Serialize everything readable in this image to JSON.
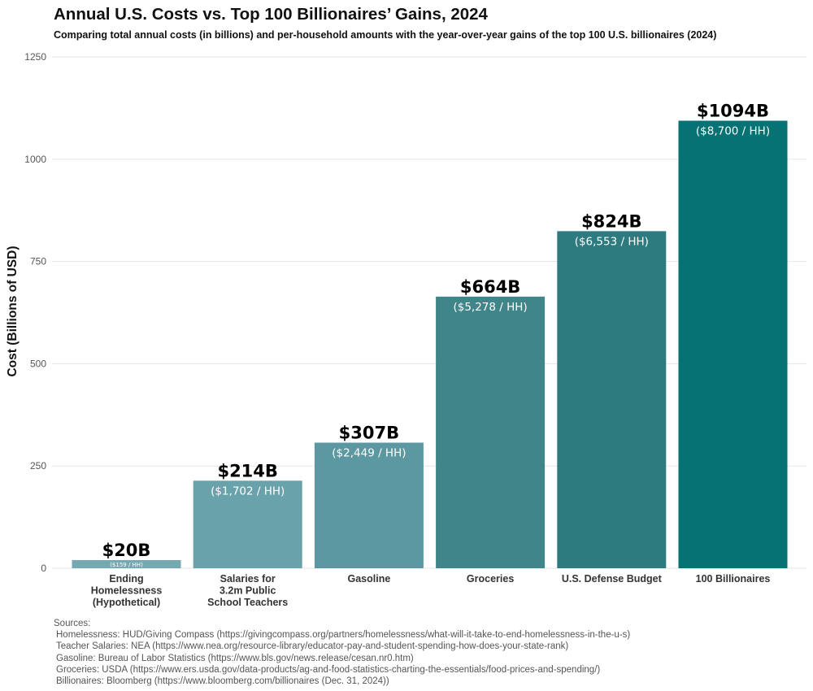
{
  "chart_data": {
    "type": "bar",
    "title": "Annual U.S. Costs vs. Top 100 Billionaires’ Gains, 2024",
    "subtitle": "Comparing total annual costs (in billions) and per-household amounts with the year-over-year gains of the top 100 U.S. billionaires (2024)",
    "xlabel": "",
    "ylabel": "Cost (Billions of USD)",
    "ylim": [
      0,
      1250
    ],
    "yticks": [
      "0",
      "250",
      "500",
      "750",
      "1000",
      "1250"
    ],
    "grid": true,
    "categories": [
      [
        "Ending",
        "Homelessness",
        "(Hypothetical)"
      ],
      [
        "Salaries for",
        "3.2m Public",
        "School Teachers"
      ],
      [
        "Gasoline"
      ],
      [
        "Groceries"
      ],
      [
        "U.S. Defense Budget"
      ],
      [
        "100 Billionaires"
      ]
    ],
    "values": [
      20,
      214,
      307,
      664,
      824,
      1094
    ],
    "value_labels": [
      "$20B",
      "$214B",
      "$307B",
      "$664B",
      "$824B",
      "$1094B"
    ],
    "per_household_labels": [
      "($159 / HH)",
      "($1,702 / HH)",
      "($2,449 / HH)",
      "($5,278 / HH)",
      "($6,553 / HH)",
      "($8,700 / HH)"
    ],
    "colors": [
      "#75a9b1",
      "#6aa2ab",
      "#5c98a1",
      "#3f8589",
      "#2e7b7f",
      "#067274"
    ]
  },
  "sources": {
    "heading": "Sources:",
    "lines": [
      "Homelessness: HUD/Giving Compass (https://givingcompass.org/partners/homelessness/what-will-it-take-to-end-homelessness-in-the-u-s)",
      "Teacher Salaries: NEA (https://www.nea.org/resource-library/educator-pay-and-student-spending-how-does-your-state-rank)",
      "Gasoline: Bureau of Labor Statistics (https://www.bls.gov/news.release/cesan.nr0.htm)",
      "Groceries: USDA (https://www.ers.usda.gov/data-products/ag-and-food-statistics-charting-the-essentials/food-prices-and-spending/)",
      "Billionaires: Bloomberg (https://www.bloomberg.com/billionaires (Dec. 31, 2024))"
    ]
  }
}
